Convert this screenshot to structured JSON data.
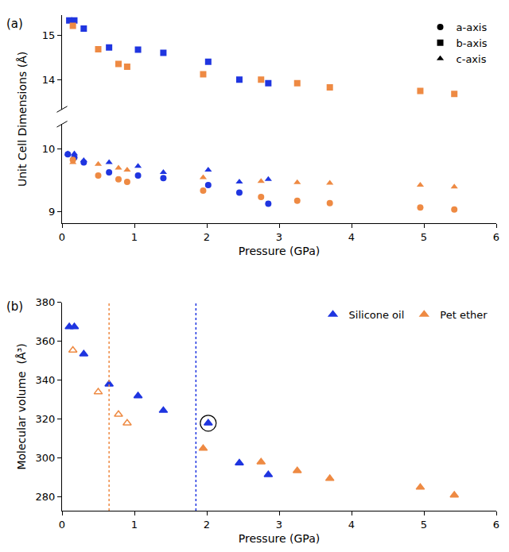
{
  "chart_data": [
    {
      "type": "scatter",
      "panel": "(a)",
      "x_label": "Pressure (GPa)",
      "y_label": "Unit Cell Dimensions (Å)",
      "xlim": [
        0,
        6
      ],
      "xticks": [
        0,
        1,
        2,
        3,
        4,
        5,
        6
      ],
      "ylim": [
        8.82,
        10.4
      ],
      "yticks": [
        9,
        10
      ],
      "y2lim": [
        13.35,
        15.45
      ],
      "y2ticks": [
        14,
        15
      ],
      "legend": "top right",
      "series": [
        {
          "name": "a-axis",
          "marker": "circle",
          "color": "#1f35e0",
          "x": [
            0.08,
            0.17,
            0.3,
            0.65,
            1.05,
            1.4,
            2.02,
            2.45,
            2.85
          ],
          "values": [
            9.92,
            9.87,
            9.79,
            9.63,
            9.58,
            9.54,
            9.43,
            9.31,
            9.13
          ]
        },
        {
          "name": "a-axis",
          "marker": "circle",
          "color": "#ee8a43",
          "x": [
            0.15,
            0.5,
            0.78,
            0.9,
            1.95,
            2.75,
            3.25,
            3.7,
            4.95,
            5.42
          ],
          "values": [
            9.83,
            9.58,
            9.52,
            9.48,
            9.34,
            9.24,
            9.18,
            9.14,
            9.07,
            9.04
          ]
        },
        {
          "name": "b-axis",
          "marker": "square",
          "color": "#1f35e0",
          "axis": "y2",
          "x": [
            0.1,
            0.17,
            0.3,
            0.65,
            1.05,
            1.4,
            2.02,
            2.45,
            2.85
          ],
          "values": [
            15.33,
            15.33,
            15.15,
            14.73,
            14.68,
            14.61,
            14.41,
            14.01,
            13.93
          ]
        },
        {
          "name": "b-axis",
          "marker": "square",
          "color": "#ee8a43",
          "axis": "y2",
          "x": [
            0.15,
            0.5,
            0.78,
            0.9,
            1.95,
            2.75,
            3.25,
            3.7,
            4.95,
            5.42
          ],
          "values": [
            15.21,
            14.69,
            14.36,
            14.3,
            14.13,
            14.01,
            13.93,
            13.84,
            13.76,
            13.69
          ]
        },
        {
          "name": "c-axis",
          "marker": "triangle",
          "color": "#1f35e0",
          "x": [
            0.08,
            0.17,
            0.3,
            0.65,
            1.05,
            1.4,
            2.02,
            2.45,
            2.85
          ],
          "values": [
            9.93,
            9.93,
            9.82,
            9.79,
            9.73,
            9.63,
            9.67,
            9.48,
            9.52
          ]
        },
        {
          "name": "c-axis",
          "marker": "triangle",
          "color": "#ee8a43",
          "x": [
            0.15,
            0.5,
            0.78,
            0.9,
            1.95,
            2.75,
            3.25,
            3.7,
            4.95,
            5.42
          ],
          "values": [
            9.79,
            9.76,
            9.7,
            9.67,
            9.55,
            9.49,
            9.47,
            9.46,
            9.43,
            9.4
          ]
        }
      ]
    },
    {
      "type": "scatter",
      "panel": "(b)",
      "x_label": "Pressure (GPa)",
      "y_label": "Molecular volume  (Å³)",
      "xlim": [
        0,
        6
      ],
      "xticks": [
        0,
        1,
        2,
        3,
        4,
        5,
        6
      ],
      "ylim": [
        273,
        380
      ],
      "yticks": [
        280,
        300,
        320,
        340,
        360,
        380
      ],
      "legend": "top right",
      "series": [
        {
          "name": "Silicone oil",
          "marker": "triangle",
          "color": "#1f35e0",
          "x": [
            0.1,
            0.17,
            0.3,
            0.65,
            1.05,
            1.4,
            2.02,
            2.45,
            2.85
          ],
          "values": [
            367.5,
            367.5,
            353.5,
            338,
            332,
            324.5,
            318,
            297.5,
            291.5
          ]
        },
        {
          "name": "Pet ether",
          "marker": "triangle",
          "color": "#ee8a43",
          "x": [
            1.95,
            2.75,
            3.25,
            3.7,
            4.95,
            5.42
          ],
          "values": [
            305,
            298,
            293.5,
            289.5,
            285,
            281
          ]
        },
        {
          "name": "Pet ether",
          "marker": "triangle-open",
          "color": "#ee8a43",
          "x": [
            0.15,
            0.5,
            0.78,
            0.9
          ],
          "values": [
            355.5,
            334,
            322.5,
            318
          ]
        }
      ],
      "vlines": [
        {
          "x": 0.65,
          "color": "#ee8a43",
          "line_style": "dotted"
        },
        {
          "x": 1.85,
          "color": "#1f35e0",
          "line_style": "dotted"
        }
      ],
      "highlight": {
        "x": 2.02,
        "y": 318
      }
    }
  ]
}
